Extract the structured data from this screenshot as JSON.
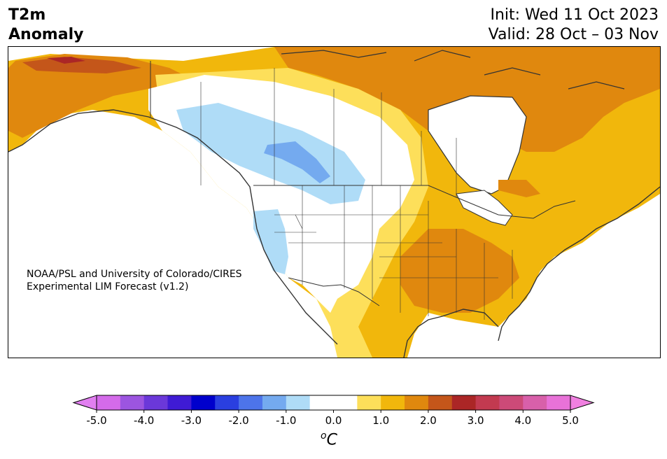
{
  "header": {
    "title_line1": "T2m",
    "title_line2": "Anomaly",
    "init": "Init: Wed 11 Oct 2023",
    "valid": "Valid: 28 Oct – 03 Nov"
  },
  "credit": {
    "line1": "NOAA/PSL and University of Colorado/CIRES",
    "line2": "Experimental LIM Forecast (v1.2)"
  },
  "colorbar": {
    "unit_base": "C",
    "unit_prefix": "o",
    "colors": [
      "#d46bea",
      "#9c55e0",
      "#6b38d9",
      "#3f1bd4",
      "#0000cc",
      "#2a3fe0",
      "#4d74ea",
      "#74aaef",
      "#afdcf7",
      "#ffffff",
      "#ffffff",
      "#fddf5a",
      "#f1b70c",
      "#e0880e",
      "#c4561a",
      "#ab2626",
      "#c23a50",
      "#cc4a78",
      "#d860aa",
      "#e872d8"
    ],
    "extend_low": "#e17ff0",
    "extend_high": "#f080e0",
    "ticks": [
      "-5.0",
      "-4.0",
      "-3.0",
      "-2.0",
      "-1.0",
      "0.0",
      "1.0",
      "2.0",
      "3.0",
      "4.0",
      "5.0"
    ]
  },
  "legend_colors": {
    "light_yellow": "#fddf5a",
    "yellow": "#f1b70c",
    "orange": "#e0880e",
    "dark_orange": "#c4561a",
    "red": "#ab2626",
    "light_blue": "#afdcf7",
    "blue": "#74aaef",
    "land_outline": "#333333"
  }
}
